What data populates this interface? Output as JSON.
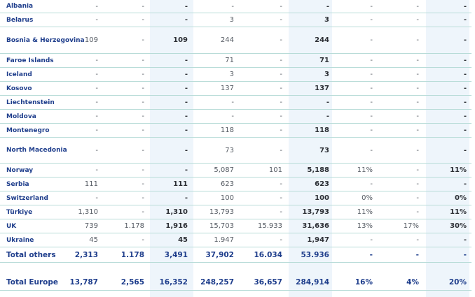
{
  "rows": [
    {
      "name": "Albania",
      "v": [
        "-",
        "-",
        "-",
        "-",
        "-",
        "-",
        "-",
        "-",
        "-"
      ]
    },
    {
      "name": "Belarus",
      "v": [
        "-",
        "-",
        "-",
        "3",
        "-",
        "3",
        "-",
        "-",
        "-"
      ]
    },
    {
      "name": "Bosnia & Herzegovina",
      "v": [
        "109",
        "-",
        "109",
        "244",
        "-",
        "244",
        "-",
        "-",
        "-"
      ]
    },
    {
      "name": "Faroe Islands",
      "v": [
        "-",
        "-",
        "-",
        "71",
        "-",
        "71",
        "-",
        "-",
        "-"
      ]
    },
    {
      "name": "Iceland",
      "v": [
        "-",
        "-",
        "-",
        "3",
        "-",
        "3",
        "-",
        "-",
        "-"
      ]
    },
    {
      "name": "Kosovo",
      "v": [
        "-",
        "-",
        "-",
        "137",
        "-",
        "137",
        "-",
        "-",
        "-"
      ]
    },
    {
      "name": "Liechtenstein",
      "v": [
        "-",
        "-",
        "-",
        "-",
        "-",
        "-",
        "-",
        "-",
        "-"
      ]
    },
    {
      "name": "Moldova",
      "v": [
        "-",
        "-",
        "-",
        "-",
        "-",
        "-",
        "-",
        "-",
        "-"
      ]
    },
    {
      "name": "Montenegro",
      "v": [
        "-",
        "-",
        "-",
        "118",
        "-",
        "118",
        "-",
        "-",
        "-"
      ]
    },
    {
      "name": "North Macedonia",
      "v": [
        "-",
        "-",
        "-",
        "73",
        "-",
        "73",
        "-",
        "-",
        "-"
      ]
    },
    {
      "name": "Norway",
      "v": [
        "-",
        "-",
        "-",
        "5,087",
        "101",
        "5,188",
        "11%",
        "-",
        "11%"
      ]
    },
    {
      "name": "Serbia",
      "v": [
        "111",
        "-",
        "111",
        "623",
        "-",
        "623",
        "-",
        "-",
        "-"
      ]
    },
    {
      "name": "Switzerland",
      "v": [
        "-",
        "-",
        "-",
        "100",
        "-",
        "100",
        "0%",
        "-",
        "0%"
      ]
    },
    {
      "name": "Türkiye",
      "v": [
        "1,310",
        "-",
        "1,310",
        "13,793",
        "-",
        "13,793",
        "11%",
        "-",
        "11%"
      ]
    },
    {
      "name": "UK",
      "v": [
        "739",
        "1.178",
        "1,916",
        "15,703",
        "15.933",
        "31,636",
        "13%",
        "17%",
        "30%"
      ]
    },
    {
      "name": "Ukraine",
      "v": [
        "45",
        "-",
        "45",
        "1.947",
        "-",
        "1,947",
        "-",
        "-",
        "-"
      ]
    }
  ],
  "total_others": {
    "name": "Total others",
    "v": [
      "2,313",
      "1.178",
      "3,491",
      "37,902",
      "16.034",
      "53.936",
      "-",
      "-",
      "-"
    ]
  },
  "total_europe": {
    "name": "Total Europe",
    "v": [
      "13,787",
      "2,565",
      "16,352",
      "248,257",
      "36,657",
      "284,914",
      "16%",
      "4%",
      "20%"
    ]
  }
}
